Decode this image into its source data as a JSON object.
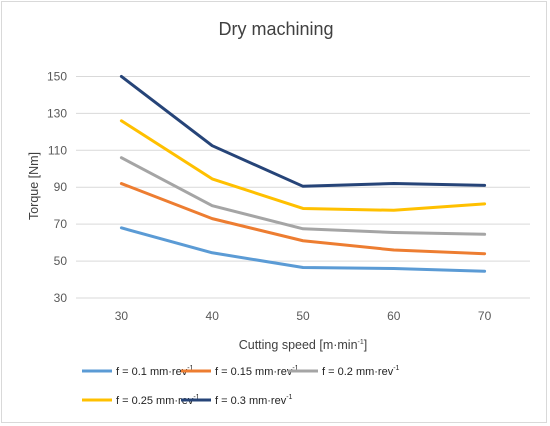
{
  "chart_data": {
    "type": "line",
    "title": "Dry machining",
    "xlabel": "Cutting speed [m·min",
    "xlabel_sup": "-1",
    "xlabel_end": "]",
    "ylabel": "Torque [Nm]",
    "x": [
      30,
      40,
      50,
      60,
      70
    ],
    "xlim": [
      25,
      75
    ],
    "ylim": [
      30,
      160
    ],
    "yticks": [
      30,
      50,
      70,
      90,
      110,
      130,
      150
    ],
    "grid": true,
    "legend_position": "bottom",
    "series": [
      {
        "name": "f = 0.1 mm·rev",
        "sup": "-1",
        "color": "#5b9bd5",
        "values": [
          68,
          54.5,
          46.5,
          46,
          44.5
        ]
      },
      {
        "name": "f = 0.15 mm·rev",
        "sup": "-1",
        "color": "#ed7d31",
        "values": [
          92,
          73,
          61,
          56,
          54
        ]
      },
      {
        "name": "f = 0.2 mm·rev",
        "sup": "-1",
        "color": "#a5a5a5",
        "values": [
          106,
          80,
          67.5,
          65.5,
          64.5
        ]
      },
      {
        "name": "f = 0.25 mm·rev",
        "sup": "-1",
        "color": "#ffc000",
        "values": [
          126,
          94.5,
          78.5,
          77.5,
          81
        ]
      },
      {
        "name": "f = 0.3 mm·rev",
        "sup": "-1",
        "color": "#264478",
        "values": [
          150,
          112.5,
          90.5,
          92,
          91
        ]
      }
    ]
  }
}
